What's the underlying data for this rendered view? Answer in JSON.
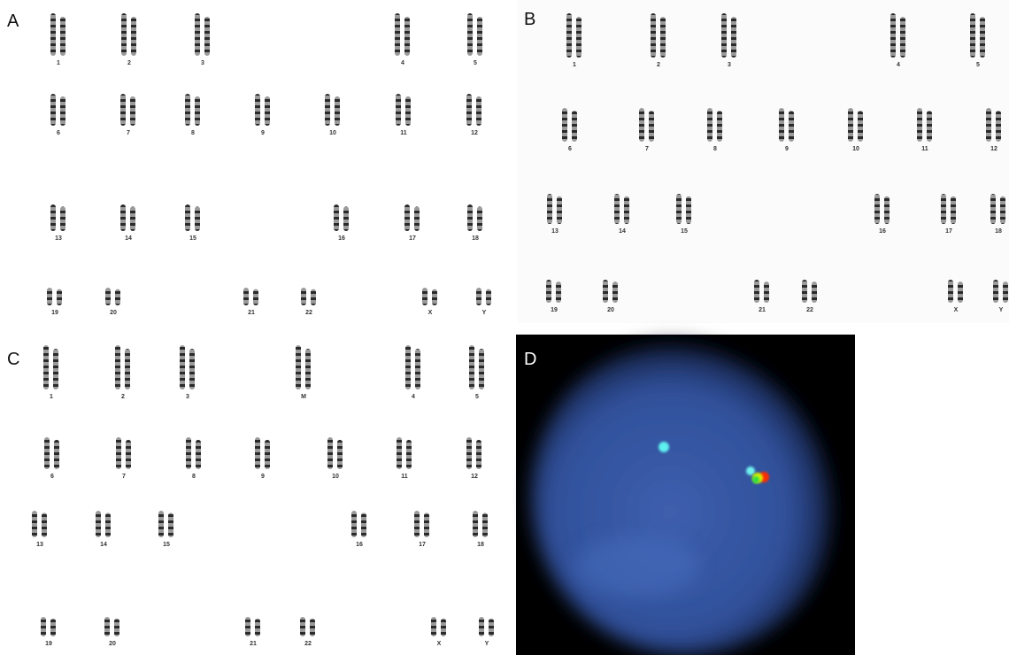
{
  "panels": [
    {
      "label": "A",
      "chromosomes": [
        "1",
        "2",
        "3",
        "4",
        "5",
        "6",
        "7",
        "8",
        "9",
        "10",
        "11",
        "12",
        "13",
        "14",
        "15",
        "16",
        "17",
        "18",
        "19",
        "20",
        "21",
        "22",
        "X",
        "Y"
      ]
    },
    {
      "label": "B",
      "chromosomes": [
        "1",
        "2",
        "3",
        "4",
        "5",
        "6",
        "7",
        "8",
        "9",
        "10",
        "11",
        "12",
        "13",
        "14",
        "15",
        "16",
        "17",
        "18",
        "19",
        "20",
        "21",
        "22",
        "X",
        "Y"
      ]
    },
    {
      "label": "C",
      "chromosomes": [
        "1",
        "2",
        "3",
        "M",
        "4",
        "5",
        "6",
        "7",
        "8",
        "9",
        "10",
        "11",
        "12",
        "13",
        "14",
        "15",
        "16",
        "17",
        "18",
        "19",
        "20",
        "21",
        "22",
        "X",
        "Y"
      ]
    },
    {
      "label": "D"
    }
  ]
}
